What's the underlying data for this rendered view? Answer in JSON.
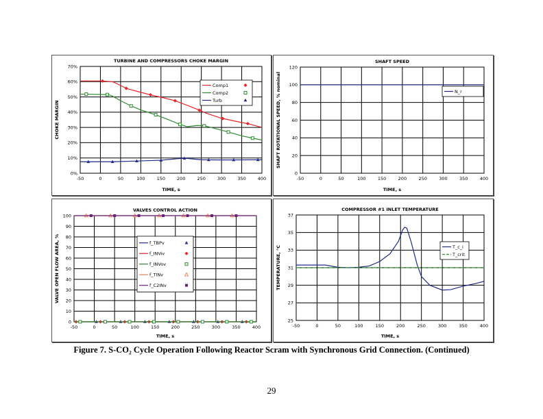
{
  "caption": "Figure 7. S-CO₂ Cycle Operation Following Reactor Scram with Synchronous Grid Connection. (Continued)",
  "page_number": "29",
  "chart_data": [
    {
      "type": "line",
      "title": "TURBINE AND COMPRESSORS CHOKE MARGIN",
      "xlabel": "TIME, s",
      "ylabel": "CHOKE MARGIN",
      "xlim": [
        -50,
        400
      ],
      "ylim": [
        0,
        70
      ],
      "xticks": [
        "-50",
        "0",
        "50",
        "100",
        "150",
        "200",
        "250",
        "300",
        "350",
        "400"
      ],
      "yticks": [
        "0%",
        "10%",
        "20%",
        "30%",
        "40%",
        "50%",
        "60%",
        "70%"
      ],
      "grid": true,
      "legend": "top-right",
      "series": [
        {
          "name": "Comp1",
          "color": "#e8262a",
          "marker": "diamond",
          "x": [
            -50,
            0,
            30,
            50,
            65,
            100,
            125,
            150,
            185,
            220,
            245,
            260,
            300,
            350,
            365,
            400
          ],
          "y": [
            60.5,
            60.5,
            60,
            57.5,
            55.5,
            53,
            51.3,
            49.8,
            47.5,
            44,
            41.3,
            39.5,
            36,
            33.2,
            32.5,
            30
          ],
          "marker_x": [
            5,
            64,
            124,
            185,
            245,
            303,
            365
          ]
        },
        {
          "name": "Comp2",
          "color": "#2e8b2e",
          "marker": "square-open",
          "x": [
            -50,
            -35,
            20,
            30,
            50,
            75,
            100,
            137,
            160,
            197,
            215,
            240,
            260,
            300,
            317,
            350,
            377,
            400
          ],
          "y": [
            51.8,
            51.8,
            51.5,
            50.5,
            47.5,
            44.2,
            41.5,
            38.3,
            36,
            32,
            30.5,
            31.3,
            31,
            28.2,
            27,
            24.5,
            23,
            21.7
          ],
          "marker_x": [
            -35,
            17,
            76,
            137,
            197,
            257,
            317,
            377
          ]
        },
        {
          "name": "Turb",
          "color": "#1f2a8a",
          "marker": "triangle",
          "x": [
            -50,
            30,
            90,
            150,
            190,
            210,
            230,
            250,
            300,
            400
          ],
          "y": [
            7.5,
            7.5,
            8,
            8.5,
            9.5,
            9.8,
            9.3,
            8.8,
            8.7,
            8.8
          ],
          "marker_x": [
            -30,
            30,
            90,
            150,
            208,
            268,
            330,
            390
          ]
        }
      ]
    },
    {
      "type": "line",
      "title": "SHAFT SPEED",
      "xlabel": "TIME, s",
      "ylabel": "SHAFT ROTATIONAL SPEED, % nominal",
      "xlim": [
        -50,
        400
      ],
      "ylim": [
        0,
        120
      ],
      "xticks": [
        "-50",
        "0",
        "50",
        "100",
        "150",
        "200",
        "250",
        "300",
        "350",
        "400"
      ],
      "yticks": [
        "0",
        "20",
        "40",
        "60",
        "80",
        "100",
        "120"
      ],
      "grid": true,
      "legend": "top-right",
      "series": [
        {
          "name": "N_r",
          "color": "#1f2a8a",
          "x": [
            -50,
            400
          ],
          "y": [
            100,
            100
          ]
        }
      ]
    },
    {
      "type": "line",
      "title": "VALVES CONTROL ACTION",
      "xlabel": "TIME, s",
      "ylabel": "VALVE OPEN FLOW AREA, %",
      "xlim": [
        -50,
        400
      ],
      "ylim": [
        0,
        100
      ],
      "xticks": [
        "-50",
        "0",
        "50",
        "100",
        "150",
        "200",
        "250",
        "300",
        "350",
        "400"
      ],
      "yticks": [
        "0",
        "10",
        "20",
        "30",
        "40",
        "50",
        "60",
        "70",
        "80",
        "90",
        "100"
      ],
      "grid": true,
      "legend": "center",
      "series": [
        {
          "name": "f_TBPv",
          "color": "#1f2a8a",
          "marker": "triangle",
          "x": [
            -50,
            400
          ],
          "y": [
            0,
            0
          ],
          "marker_x": [
            5,
            65,
            125,
            185,
            245,
            305,
            365
          ]
        },
        {
          "name": "f_INViv",
          "color": "#e8262a",
          "marker": "diamond",
          "x": [
            -50,
            400
          ],
          "y": [
            0,
            0
          ],
          "marker_x": [
            -45,
            15,
            75,
            135,
            195,
            255,
            315,
            375
          ]
        },
        {
          "name": "f_INVov",
          "color": "#2e8b2e",
          "marker": "square-open",
          "x": [
            -50,
            400
          ],
          "y": [
            0,
            0
          ],
          "marker_x": [
            -35,
            27,
            87,
            147,
            207,
            267,
            327,
            387
          ]
        },
        {
          "name": "f_TINv",
          "color": "#f4845f",
          "marker": "triangle-open",
          "x": [
            -50,
            400
          ],
          "y": [
            100,
            100
          ],
          "marker_x": [
            -20,
            40,
            100,
            160,
            220,
            280,
            340
          ]
        },
        {
          "name": "f_C2INv",
          "color": "#6a1f7a",
          "marker": "square",
          "x": [
            -50,
            400
          ],
          "y": [
            100,
            100
          ],
          "marker_x": [
            -8,
            50,
            110,
            170,
            230,
            290,
            350
          ]
        }
      ]
    },
    {
      "type": "line",
      "title": "COMPRESSOR #1 INLET TEMPERATURE",
      "xlabel": "TIME, s",
      "ylabel": "TEMPERATURE, °C",
      "xlim": [
        -50,
        400
      ],
      "ylim": [
        25,
        37
      ],
      "xticks": [
        "-50",
        "0",
        "50",
        "100",
        "150",
        "200",
        "250",
        "300",
        "350",
        "400"
      ],
      "yticks": [
        "25",
        "27",
        "29",
        "31",
        "33",
        "35",
        "37"
      ],
      "grid": true,
      "legend": "right",
      "series": [
        {
          "name": "T_c_i",
          "color": "#1f2a8a",
          "x": [
            -50,
            20,
            50,
            75,
            100,
            125,
            150,
            175,
            195,
            205,
            210,
            215,
            225,
            240,
            250,
            270,
            300,
            320,
            350,
            380,
            400
          ],
          "y": [
            31.3,
            31.3,
            31.05,
            31,
            31.05,
            31.2,
            31.7,
            32.6,
            34,
            35.3,
            35.6,
            35.5,
            34,
            31.3,
            30,
            29,
            28.45,
            28.5,
            28.9,
            29.2,
            29.45
          ]
        },
        {
          "name": "T_crit",
          "color": "#2e8b2e",
          "dashed": true,
          "x": [
            -50,
            400
          ],
          "y": [
            31,
            31
          ]
        }
      ]
    }
  ]
}
